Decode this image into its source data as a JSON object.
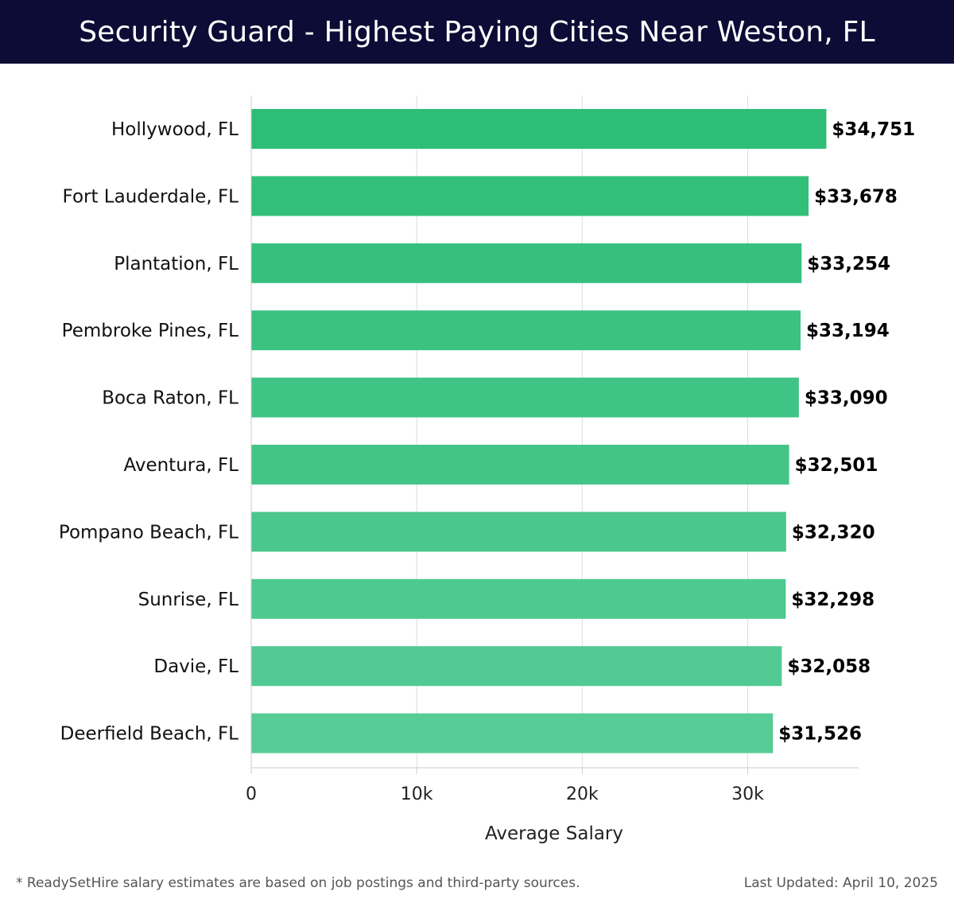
{
  "header": {
    "title": "Security Guard - Highest Paying Cities Near Weston, FL"
  },
  "chart_data": {
    "type": "bar",
    "orientation": "horizontal",
    "title": "Security Guard - Highest Paying Cities Near Weston, FL",
    "categories": [
      "Hollywood, FL",
      "Fort Lauderdale, FL",
      "Plantation, FL",
      "Pembroke Pines, FL",
      "Boca Raton, FL",
      "Aventura, FL",
      "Pompano Beach, FL",
      "Sunrise, FL",
      "Davie, FL",
      "Deerfield Beach, FL"
    ],
    "values": [
      34751,
      33678,
      33254,
      33194,
      33090,
      32501,
      32320,
      32298,
      32058,
      31526
    ],
    "value_labels": [
      "$34,751",
      "$33,678",
      "$33,254",
      "$33,194",
      "$33,090",
      "$32,501",
      "$32,320",
      "$32,298",
      "$32,058",
      "$31,526"
    ],
    "xlabel": "Average Salary",
    "ylabel": "",
    "xlim": [
      0,
      36700
    ],
    "xticks": [
      0,
      10000,
      20000,
      30000
    ],
    "xtick_labels": [
      "0",
      "10k",
      "20k",
      "30k"
    ],
    "grid": true,
    "colors": {
      "bar_top": "#2dbd77",
      "bar_bottom": "#57cc96",
      "grid": "#dddddd",
      "axis": "#cccccc"
    }
  },
  "footer": {
    "note": "* ReadySetHire salary estimates are based on job postings and third-party sources.",
    "updated": "Last Updated: April 10, 2025"
  }
}
